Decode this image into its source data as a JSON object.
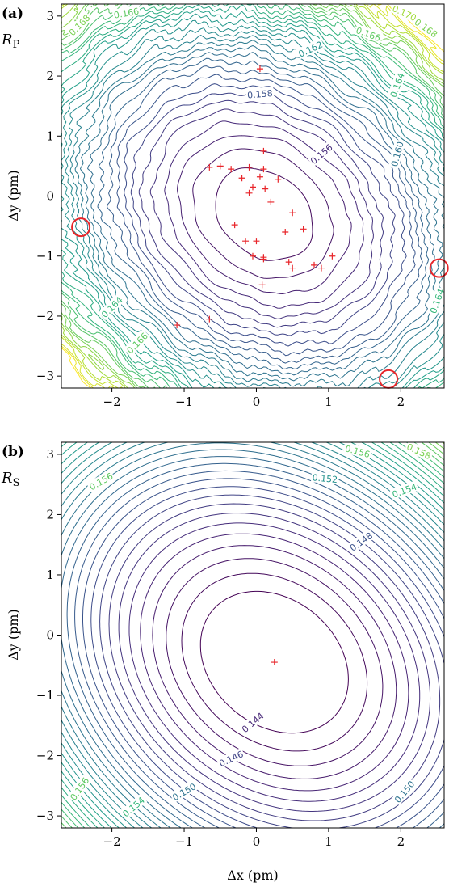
{
  "chart_data": [
    {
      "type": "contour",
      "panel_tag": "(a)",
      "quantity": "R",
      "quantity_sub": "P",
      "xlabel": "",
      "ylabel": "Δy (pm)",
      "xlim": [
        -2.7,
        2.6
      ],
      "ylim": [
        -3.2,
        3.2
      ],
      "xticks": [
        "−2",
        "−1",
        "0",
        "1",
        "2"
      ],
      "xtick_values": [
        -2,
        -1,
        0,
        1,
        2
      ],
      "yticks": [
        "−3",
        "−2",
        "−1",
        "0",
        "1",
        "2",
        "3"
      ],
      "ytick_values": [
        -3,
        -2,
        -1,
        0,
        1,
        2,
        3
      ],
      "colormap": "viridis",
      "level_min": 0.1545,
      "level_max": 0.1715,
      "level_step": 0.0005,
      "field": {
        "cx": 0.1,
        "cy": -0.3,
        "a": 2.2,
        "b": 2.85,
        "angle_deg": 32,
        "min": 0.1545,
        "coef": 0.0062,
        "noise": 0.06
      },
      "contour_labels": [
        {
          "text": "0.166",
          "x": -1.8,
          "y": 3.05,
          "angle": -10,
          "color": "#5ec962"
        },
        {
          "text": "0.168",
          "x": -2.45,
          "y": 2.85,
          "angle": -45,
          "color": "#7ad151"
        },
        {
          "text": "0.170",
          "x": 2.05,
          "y": 3.05,
          "angle": 25,
          "color": "#a0da39"
        },
        {
          "text": "0.168",
          "x": 2.35,
          "y": 2.8,
          "angle": 35,
          "color": "#7ad151"
        },
        {
          "text": "0.166",
          "x": 1.55,
          "y": 2.7,
          "angle": 20,
          "color": "#5ec962"
        },
        {
          "text": "0.162",
          "x": 0.75,
          "y": 2.45,
          "angle": -25,
          "color": "#21918c"
        },
        {
          "text": "0.164",
          "x": 1.95,
          "y": 1.85,
          "angle": -70,
          "color": "#35b779"
        },
        {
          "text": "0.158",
          "x": 0.05,
          "y": 1.7,
          "angle": -5,
          "color": "#3b528b"
        },
        {
          "text": "0.160",
          "x": 1.95,
          "y": 0.7,
          "angle": -75,
          "color": "#2c728e"
        },
        {
          "text": "0.156",
          "x": 0.9,
          "y": 0.7,
          "angle": -40,
          "color": "#472d7b"
        },
        {
          "text": "0.164",
          "x": -2.0,
          "y": -1.85,
          "angle": -45,
          "color": "#35b779"
        },
        {
          "text": "0.166",
          "x": -1.65,
          "y": -2.45,
          "angle": -45,
          "color": "#5ec962"
        },
        {
          "text": "0.164",
          "x": 2.5,
          "y": -1.75,
          "angle": -70,
          "color": "#35b779"
        }
      ],
      "markers": [
        {
          "x": 0.05,
          "y": 2.12
        },
        {
          "x": 0.1,
          "y": 0.75
        },
        {
          "x": -0.65,
          "y": 0.48
        },
        {
          "x": -0.5,
          "y": 0.5
        },
        {
          "x": -0.35,
          "y": 0.45
        },
        {
          "x": -0.1,
          "y": 0.48
        },
        {
          "x": 0.1,
          "y": 0.45
        },
        {
          "x": -0.2,
          "y": 0.3
        },
        {
          "x": 0.05,
          "y": 0.32
        },
        {
          "x": 0.3,
          "y": 0.28
        },
        {
          "x": -0.05,
          "y": 0.15
        },
        {
          "x": 0.12,
          "y": 0.12
        },
        {
          "x": -0.1,
          "y": 0.05
        },
        {
          "x": 0.2,
          "y": -0.1
        },
        {
          "x": 0.5,
          "y": -0.28
        },
        {
          "x": -0.3,
          "y": -0.48
        },
        {
          "x": 0.65,
          "y": -0.55
        },
        {
          "x": 0.4,
          "y": -0.6
        },
        {
          "x": -0.15,
          "y": -0.75
        },
        {
          "x": 0.0,
          "y": -0.75
        },
        {
          "x": -0.05,
          "y": -1.0
        },
        {
          "x": 0.1,
          "y": -1.02
        },
        {
          "x": 0.1,
          "y": -1.05
        },
        {
          "x": 0.45,
          "y": -1.1
        },
        {
          "x": 0.5,
          "y": -1.2
        },
        {
          "x": 0.8,
          "y": -1.15
        },
        {
          "x": 0.9,
          "y": -1.2
        },
        {
          "x": 1.05,
          "y": -1.0
        },
        {
          "x": 0.08,
          "y": -1.48
        },
        {
          "x": -0.65,
          "y": -2.05
        },
        {
          "x": -1.1,
          "y": -2.15
        }
      ],
      "circles": [
        {
          "x": -2.43,
          "y": -0.52
        },
        {
          "x": 2.53,
          "y": -1.2
        },
        {
          "x": 1.83,
          "y": -3.05
        }
      ]
    },
    {
      "type": "contour",
      "panel_tag": "(b)",
      "quantity": "R",
      "quantity_sub": "S",
      "xlabel": "Δx (pm)",
      "ylabel": "Δy (pm)",
      "xlim": [
        -2.7,
        2.6
      ],
      "ylim": [
        -3.2,
        3.2
      ],
      "xticks": [
        "−2",
        "−1",
        "0",
        "1",
        "2"
      ],
      "xtick_values": [
        -2,
        -1,
        0,
        1,
        2
      ],
      "yticks": [
        "−3",
        "−2",
        "−1",
        "0",
        "1",
        "2",
        "3"
      ],
      "ytick_values": [
        -3,
        -2,
        -1,
        0,
        1,
        2,
        3
      ],
      "colormap": "viridis",
      "level_min": 0.1432,
      "level_max": 0.1588,
      "level_step": 0.0004,
      "field": {
        "cx": 0.25,
        "cy": -0.45,
        "a": 2.3,
        "b": 3.05,
        "angle_deg": 30,
        "min": 0.1425,
        "coef": 0.0042,
        "noise": 0.0
      },
      "contour_labels": [
        {
          "text": "0.156",
          "x": -2.15,
          "y": 2.55,
          "angle": -30,
          "color": "#5ec962"
        },
        {
          "text": "0.156",
          "x": 1.4,
          "y": 3.05,
          "angle": 15,
          "color": "#5ec962"
        },
        {
          "text": "0.158",
          "x": 2.25,
          "y": 3.05,
          "angle": 25,
          "color": "#7ad151"
        },
        {
          "text": "0.152",
          "x": 0.95,
          "y": 2.6,
          "angle": 5,
          "color": "#21918c"
        },
        {
          "text": "0.154",
          "x": 2.05,
          "y": 2.4,
          "angle": -20,
          "color": "#35b779"
        },
        {
          "text": "0.148",
          "x": 1.45,
          "y": 1.55,
          "angle": -35,
          "color": "#3b528b"
        },
        {
          "text": "0.144",
          "x": -0.05,
          "y": -1.45,
          "angle": -40,
          "color": "#482878"
        },
        {
          "text": "0.146",
          "x": -0.35,
          "y": -2.05,
          "angle": -25,
          "color": "#414487"
        },
        {
          "text": "0.150",
          "x": -1.0,
          "y": -2.6,
          "angle": -30,
          "color": "#2c728e"
        },
        {
          "text": "0.154",
          "x": -1.7,
          "y": -2.85,
          "angle": -40,
          "color": "#35b779"
        },
        {
          "text": "0.156",
          "x": -2.45,
          "y": -2.55,
          "angle": -55,
          "color": "#5ec962"
        },
        {
          "text": "0.150",
          "x": 2.05,
          "y": -2.6,
          "angle": -50,
          "color": "#2c728e"
        }
      ],
      "markers": [
        {
          "x": 0.25,
          "y": -0.45
        }
      ],
      "circles": []
    }
  ]
}
